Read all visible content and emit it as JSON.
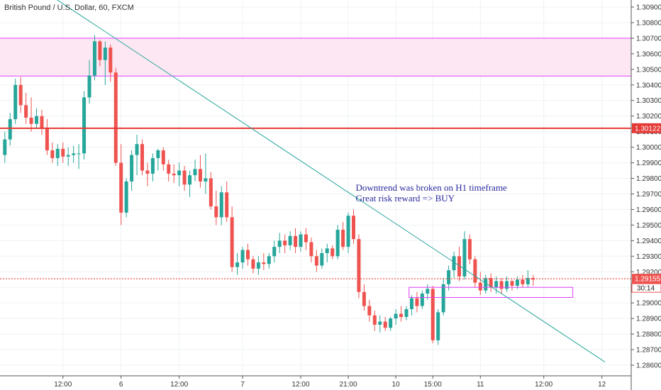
{
  "chart_data": {
    "type": "candlestick",
    "title": "British Pound / U.S. Dollar, 60, FXCM",
    "colors": {
      "up": "#26a69a",
      "down": "#ef5350",
      "trendline": "#26a69a",
      "resistance_line": "#e53935",
      "zone_fill": "#fde7f3",
      "zone_border": "#e040fb",
      "current_price_line": "#ef5350",
      "grid": "#eef1f5",
      "axis": "#555555"
    },
    "y_axis": {
      "min": 1.2855,
      "max": 1.3098,
      "ticks": [
        "1.30900",
        "1.30800",
        "1.30700",
        "1.30600",
        "1.30500",
        "1.30400",
        "1.30300",
        "1.30200",
        "1.30100",
        "1.30000",
        "1.29900",
        "1.29800",
        "1.29700",
        "1.29600",
        "1.29500",
        "1.29400",
        "1.29300",
        "1.29200",
        "1.29100",
        "1.29000",
        "1.28900",
        "1.28800",
        "1.28700",
        "1.28600"
      ]
    },
    "x_axis": {
      "labels": [
        {
          "label": "12:00",
          "i": 11
        },
        {
          "label": "6",
          "i": 22
        },
        {
          "label": "12:00",
          "i": 33
        },
        {
          "label": "7",
          "i": 45
        },
        {
          "label": "12:00",
          "i": 56
        },
        {
          "label": "21:00",
          "i": 65
        },
        {
          "label": "10",
          "i": 74
        },
        {
          "label": "15:00",
          "i": 81
        },
        {
          "label": "11",
          "i": 90
        },
        {
          "label": "12:00",
          "i": 102
        },
        {
          "label": "12",
          "i": 113
        }
      ]
    },
    "candles": [
      {
        "o": 1.2995,
        "h": 1.301,
        "l": 1.299,
        "c": 1.3005
      },
      {
        "o": 1.3005,
        "h": 1.3022,
        "l": 1.3001,
        "c": 1.3018
      },
      {
        "o": 1.3018,
        "h": 1.3044,
        "l": 1.3015,
        "c": 1.304
      },
      {
        "o": 1.304,
        "h": 1.3045,
        "l": 1.3022,
        "c": 1.3027
      },
      {
        "o": 1.3027,
        "h": 1.3035,
        "l": 1.3015,
        "c": 1.3019
      },
      {
        "o": 1.3019,
        "h": 1.3032,
        "l": 1.301,
        "c": 1.3015
      },
      {
        "o": 1.3015,
        "h": 1.3025,
        "l": 1.3012,
        "c": 1.302
      },
      {
        "o": 1.302,
        "h": 1.3024,
        "l": 1.3008,
        "c": 1.3012
      },
      {
        "o": 1.3012,
        "h": 1.3018,
        "l": 1.2995,
        "c": 1.2998
      },
      {
        "o": 1.2998,
        "h": 1.3003,
        "l": 1.299,
        "c": 1.2993
      },
      {
        "o": 1.2993,
        "h": 1.3002,
        "l": 1.2988,
        "c": 1.2999
      },
      {
        "o": 1.2999,
        "h": 1.3003,
        "l": 1.299,
        "c": 1.2994
      },
      {
        "o": 1.2994,
        "h": 1.3,
        "l": 1.2988,
        "c": 1.2995
      },
      {
        "o": 1.2995,
        "h": 1.3001,
        "l": 1.299,
        "c": 1.2996
      },
      {
        "o": 1.2996,
        "h": 1.3002,
        "l": 1.2986,
        "c": 1.2996
      },
      {
        "o": 1.2996,
        "h": 1.3036,
        "l": 1.2992,
        "c": 1.3032
      },
      {
        "o": 1.3032,
        "h": 1.3056,
        "l": 1.3028,
        "c": 1.3046
      },
      {
        "o": 1.3046,
        "h": 1.3072,
        "l": 1.3043,
        "c": 1.3068
      },
      {
        "o": 1.3068,
        "h": 1.3069,
        "l": 1.3052,
        "c": 1.3056
      },
      {
        "o": 1.3056,
        "h": 1.3068,
        "l": 1.304,
        "c": 1.3064
      },
      {
        "o": 1.3064,
        "h": 1.3066,
        "l": 1.3042,
        "c": 1.3048
      },
      {
        "o": 1.3048,
        "h": 1.3051,
        "l": 1.2988,
        "c": 1.299
      },
      {
        "o": 1.299,
        "h": 1.3002,
        "l": 1.295,
        "c": 1.2958
      },
      {
        "o": 1.2958,
        "h": 1.298,
        "l": 1.2955,
        "c": 1.2978
      },
      {
        "o": 1.2978,
        "h": 1.2998,
        "l": 1.2972,
        "c": 1.2995
      },
      {
        "o": 1.2995,
        "h": 1.3008,
        "l": 1.2982,
        "c": 1.3002
      },
      {
        "o": 1.3002,
        "h": 1.3005,
        "l": 1.2982,
        "c": 1.2985
      },
      {
        "o": 1.2985,
        "h": 1.299,
        "l": 1.2975,
        "c": 1.2983
      },
      {
        "o": 1.2983,
        "h": 1.2996,
        "l": 1.2978,
        "c": 1.2993
      },
      {
        "o": 1.2993,
        "h": 1.2999,
        "l": 1.2985,
        "c": 1.2998
      },
      {
        "o": 1.2998,
        "h": 1.3,
        "l": 1.2985,
        "c": 1.2989
      },
      {
        "o": 1.2989,
        "h": 1.2992,
        "l": 1.2978,
        "c": 1.2983
      },
      {
        "o": 1.2983,
        "h": 1.2989,
        "l": 1.2977,
        "c": 1.2982
      },
      {
        "o": 1.2982,
        "h": 1.299,
        "l": 1.2975,
        "c": 1.2985
      },
      {
        "o": 1.2985,
        "h": 1.2988,
        "l": 1.2972,
        "c": 1.2976
      },
      {
        "o": 1.2976,
        "h": 1.2985,
        "l": 1.2968,
        "c": 1.2982
      },
      {
        "o": 1.2982,
        "h": 1.2992,
        "l": 1.2978,
        "c": 1.2986
      },
      {
        "o": 1.2986,
        "h": 1.2995,
        "l": 1.2974,
        "c": 1.2978
      },
      {
        "o": 1.2978,
        "h": 1.2996,
        "l": 1.297,
        "c": 1.298
      },
      {
        "o": 1.298,
        "h": 1.2984,
        "l": 1.296,
        "c": 1.2962
      },
      {
        "o": 1.2962,
        "h": 1.2972,
        "l": 1.295,
        "c": 1.2955
      },
      {
        "o": 1.2955,
        "h": 1.2975,
        "l": 1.295,
        "c": 1.2971
      },
      {
        "o": 1.2971,
        "h": 1.2978,
        "l": 1.2952,
        "c": 1.2955
      },
      {
        "o": 1.2955,
        "h": 1.2962,
        "l": 1.292,
        "c": 1.2923
      },
      {
        "o": 1.2923,
        "h": 1.2932,
        "l": 1.2918,
        "c": 1.2926
      },
      {
        "o": 1.2926,
        "h": 1.2936,
        "l": 1.2922,
        "c": 1.2934
      },
      {
        "o": 1.2934,
        "h": 1.2938,
        "l": 1.2924,
        "c": 1.2928
      },
      {
        "o": 1.2928,
        "h": 1.293,
        "l": 1.2919,
        "c": 1.2922
      },
      {
        "o": 1.2922,
        "h": 1.293,
        "l": 1.2918,
        "c": 1.2926
      },
      {
        "o": 1.2926,
        "h": 1.2932,
        "l": 1.2921,
        "c": 1.2925
      },
      {
        "o": 1.2925,
        "h": 1.2932,
        "l": 1.2922,
        "c": 1.293
      },
      {
        "o": 1.293,
        "h": 1.294,
        "l": 1.2926,
        "c": 1.2936
      },
      {
        "o": 1.2936,
        "h": 1.2945,
        "l": 1.2932,
        "c": 1.294
      },
      {
        "o": 1.294,
        "h": 1.2944,
        "l": 1.2932,
        "c": 1.2937
      },
      {
        "o": 1.2937,
        "h": 1.2946,
        "l": 1.2934,
        "c": 1.2943
      },
      {
        "o": 1.2943,
        "h": 1.2948,
        "l": 1.2932,
        "c": 1.2936
      },
      {
        "o": 1.2936,
        "h": 1.2946,
        "l": 1.2933,
        "c": 1.2944
      },
      {
        "o": 1.2944,
        "h": 1.2948,
        "l": 1.2934,
        "c": 1.2939
      },
      {
        "o": 1.2939,
        "h": 1.2942,
        "l": 1.2926,
        "c": 1.293
      },
      {
        "o": 1.293,
        "h": 1.2934,
        "l": 1.292,
        "c": 1.2924
      },
      {
        "o": 1.2924,
        "h": 1.2935,
        "l": 1.2922,
        "c": 1.2932
      },
      {
        "o": 1.2932,
        "h": 1.2938,
        "l": 1.2926,
        "c": 1.2935
      },
      {
        "o": 1.2935,
        "h": 1.2937,
        "l": 1.2928,
        "c": 1.293
      },
      {
        "o": 1.293,
        "h": 1.295,
        "l": 1.2928,
        "c": 1.2947
      },
      {
        "o": 1.2947,
        "h": 1.2952,
        "l": 1.2934,
        "c": 1.2936
      },
      {
        "o": 1.2936,
        "h": 1.2958,
        "l": 1.2932,
        "c": 1.2956
      },
      {
        "o": 1.2956,
        "h": 1.296,
        "l": 1.2938,
        "c": 1.2941
      },
      {
        "o": 1.2941,
        "h": 1.2944,
        "l": 1.2903,
        "c": 1.2907
      },
      {
        "o": 1.2907,
        "h": 1.2912,
        "l": 1.2895,
        "c": 1.2898
      },
      {
        "o": 1.2898,
        "h": 1.2902,
        "l": 1.2888,
        "c": 1.2892
      },
      {
        "o": 1.2892,
        "h": 1.2895,
        "l": 1.2882,
        "c": 1.2886
      },
      {
        "o": 1.2886,
        "h": 1.2892,
        "l": 1.2881,
        "c": 1.2888
      },
      {
        "o": 1.2888,
        "h": 1.2891,
        "l": 1.2882,
        "c": 1.2884
      },
      {
        "o": 1.2884,
        "h": 1.2891,
        "l": 1.2882,
        "c": 1.289
      },
      {
        "o": 1.289,
        "h": 1.2896,
        "l": 1.2886,
        "c": 1.2893
      },
      {
        "o": 1.2893,
        "h": 1.2898,
        "l": 1.2888,
        "c": 1.2891
      },
      {
        "o": 1.2891,
        "h": 1.2898,
        "l": 1.2889,
        "c": 1.2896
      },
      {
        "o": 1.2896,
        "h": 1.2905,
        "l": 1.2892,
        "c": 1.2903
      },
      {
        "o": 1.2903,
        "h": 1.2907,
        "l": 1.2894,
        "c": 1.2898
      },
      {
        "o": 1.2898,
        "h": 1.2908,
        "l": 1.2896,
        "c": 1.2906
      },
      {
        "o": 1.2906,
        "h": 1.2912,
        "l": 1.2902,
        "c": 1.2909
      },
      {
        "o": 1.2909,
        "h": 1.2911,
        "l": 1.2874,
        "c": 1.2876
      },
      {
        "o": 1.2876,
        "h": 1.2896,
        "l": 1.2873,
        "c": 1.2894
      },
      {
        "o": 1.2894,
        "h": 1.2916,
        "l": 1.2892,
        "c": 1.2912
      },
      {
        "o": 1.2912,
        "h": 1.2924,
        "l": 1.2908,
        "c": 1.2921
      },
      {
        "o": 1.2921,
        "h": 1.2933,
        "l": 1.2916,
        "c": 1.293
      },
      {
        "o": 1.293,
        "h": 1.2936,
        "l": 1.2914,
        "c": 1.2917
      },
      {
        "o": 1.2917,
        "h": 1.2946,
        "l": 1.2915,
        "c": 1.2941
      },
      {
        "o": 1.2941,
        "h": 1.2944,
        "l": 1.2925,
        "c": 1.2928
      },
      {
        "o": 1.2928,
        "h": 1.293,
        "l": 1.291,
        "c": 1.2913
      },
      {
        "o": 1.2913,
        "h": 1.292,
        "l": 1.2905,
        "c": 1.2908
      },
      {
        "o": 1.2908,
        "h": 1.2918,
        "l": 1.2906,
        "c": 1.2916
      },
      {
        "o": 1.2916,
        "h": 1.2919,
        "l": 1.2907,
        "c": 1.291
      },
      {
        "o": 1.291,
        "h": 1.2917,
        "l": 1.2906,
        "c": 1.2914
      },
      {
        "o": 1.2914,
        "h": 1.2916,
        "l": 1.2906,
        "c": 1.2909
      },
      {
        "o": 1.2909,
        "h": 1.2917,
        "l": 1.2907,
        "c": 1.2914
      },
      {
        "o": 1.2914,
        "h": 1.2915,
        "l": 1.2908,
        "c": 1.2911
      },
      {
        "o": 1.2911,
        "h": 1.2917,
        "l": 1.2909,
        "c": 1.2915
      },
      {
        "o": 1.2915,
        "h": 1.2918,
        "l": 1.291,
        "c": 1.2912
      },
      {
        "o": 1.2912,
        "h": 1.2921,
        "l": 1.291,
        "c": 1.2916
      },
      {
        "o": 1.2916,
        "h": 1.2918,
        "l": 1.2911,
        "c": 1.2915
      }
    ],
    "trendline": {
      "start": {
        "i": 7.5,
        "price": 1.31
      },
      "end": {
        "i": 113.6,
        "price": 1.2862
      }
    },
    "resistance_zone": {
      "top": 1.307,
      "bottom": 1.30457
    },
    "resistance_line": {
      "price": 1.30122
    },
    "support_zone": {
      "i_start": 76.5,
      "i_end": 107.5,
      "top": 1.291,
      "bottom": 1.29035
    },
    "current_price": 1.29155,
    "price_labels": {
      "current": "1.29155",
      "countdown": "30:14",
      "resistance": "1.30122"
    },
    "annotation": {
      "lines": [
        "Downtrend was broken on H1 timeframe",
        "Great risk reward => BUY"
      ],
      "i": 66.4,
      "price": 1.2972
    }
  }
}
